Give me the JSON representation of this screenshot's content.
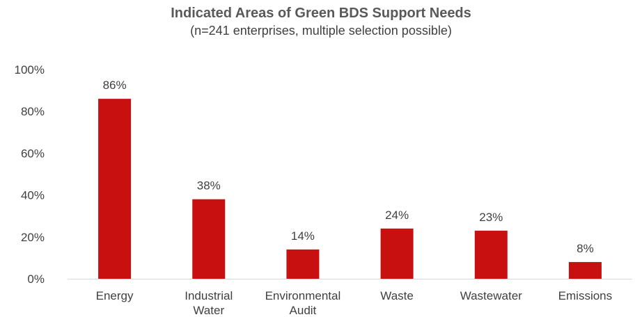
{
  "chart_data": {
    "type": "bar",
    "title": "Indicated Areas of Green BDS Support Needs",
    "subtitle": "(n=241 enterprises, multiple selection possible)",
    "categories": [
      [
        "Energy"
      ],
      [
        "Industrial",
        "Water"
      ],
      [
        "Environmental",
        "Audit"
      ],
      [
        "Waste"
      ],
      [
        "Wastewater"
      ],
      [
        "Emissions"
      ]
    ],
    "values": [
      86,
      38,
      14,
      24,
      23,
      8
    ],
    "data_labels": [
      "86%",
      "38%",
      "14%",
      "24%",
      "23%",
      "8%"
    ],
    "ylim": [
      0,
      100
    ],
    "yticks": [
      0,
      20,
      40,
      60,
      80,
      100
    ],
    "ytick_labels": [
      "0%",
      "20%",
      "40%",
      "60%",
      "80%",
      "100%"
    ],
    "bar_color": "#c81010",
    "grid": false,
    "legend": false
  }
}
